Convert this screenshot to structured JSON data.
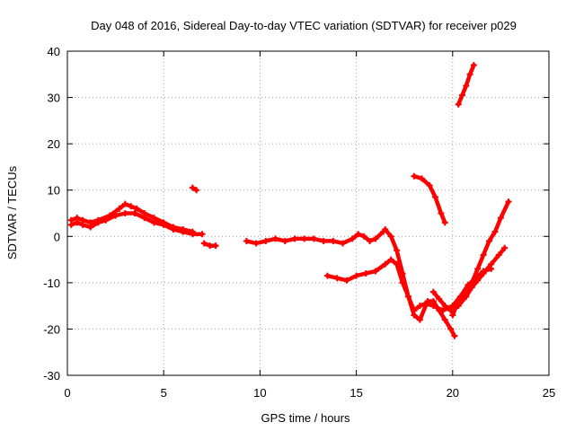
{
  "chart_data": {
    "type": "scatter",
    "title": "Day 048 of 2016, Sidereal Day-to-day VTEC variation (SDTVAR) for receiver p029",
    "xlabel": "GPS time / hours",
    "ylabel": "SDTVAR / TECUs",
    "xlim": [
      0,
      25
    ],
    "ylim": [
      -30,
      40
    ],
    "xticks": [
      0,
      5,
      10,
      15,
      20,
      25
    ],
    "yticks": [
      -30,
      -20,
      -10,
      0,
      10,
      20,
      30,
      40
    ],
    "grid": true,
    "marker": "+",
    "color": "#ff0000",
    "series": [
      {
        "points": [
          [
            0.2,
            2.5
          ],
          [
            0.5,
            3
          ],
          [
            0.8,
            2.5
          ],
          [
            1.2,
            2
          ],
          [
            1.6,
            3
          ],
          [
            2.0,
            3.5
          ],
          [
            2.5,
            4.5
          ],
          [
            3.0,
            5
          ],
          [
            3.5,
            5
          ],
          [
            4.0,
            4
          ],
          [
            4.5,
            3
          ],
          [
            5.0,
            2.5
          ],
          [
            5.5,
            1.5
          ],
          [
            6.0,
            1
          ],
          [
            6.5,
            0.5
          ],
          [
            7.0,
            0.5
          ]
        ]
      },
      {
        "points": [
          [
            0.2,
            3.5
          ],
          [
            0.5,
            4
          ],
          [
            0.8,
            3.5
          ],
          [
            1.2,
            3
          ],
          [
            1.6,
            3.5
          ],
          [
            2.2,
            4.5
          ],
          [
            2.7,
            6
          ],
          [
            3.0,
            7
          ],
          [
            3.3,
            6.5
          ],
          [
            3.6,
            6
          ],
          [
            4.0,
            5
          ],
          [
            4.5,
            4
          ],
          [
            5.0,
            3
          ],
          [
            5.5,
            2
          ],
          [
            6.0,
            1.5
          ],
          [
            6.5,
            1
          ]
        ]
      },
      {
        "points": [
          [
            7.1,
            -1.5
          ],
          [
            7.4,
            -2
          ],
          [
            7.7,
            -2
          ]
        ]
      },
      {
        "points": [
          [
            6.5,
            10.5
          ],
          [
            6.7,
            10
          ]
        ]
      },
      {
        "points": [
          [
            9.3,
            -1
          ],
          [
            9.8,
            -1.5
          ],
          [
            10.3,
            -1
          ],
          [
            10.8,
            -0.5
          ],
          [
            11.3,
            -1
          ],
          [
            11.8,
            -0.5
          ],
          [
            12.3,
            -0.5
          ],
          [
            12.8,
            -0.5
          ],
          [
            13.3,
            -1
          ],
          [
            13.8,
            -1
          ],
          [
            14.3,
            -1.5
          ],
          [
            14.8,
            -0.5
          ],
          [
            15.1,
            0.5
          ],
          [
            15.4,
            0
          ],
          [
            15.7,
            -1
          ],
          [
            16.0,
            -0.5
          ],
          [
            16.4,
            1
          ]
        ]
      },
      {
        "points": [
          [
            13.5,
            -8.5
          ],
          [
            14.0,
            -9
          ],
          [
            14.5,
            -9.5
          ],
          [
            15.0,
            -8.5
          ],
          [
            15.5,
            -8
          ],
          [
            16.0,
            -7.5
          ],
          [
            16.5,
            -6
          ],
          [
            16.8,
            -5
          ],
          [
            17.1,
            -6
          ],
          [
            17.4,
            -10
          ],
          [
            17.7,
            -13
          ],
          [
            18.0,
            -16
          ],
          [
            18.3,
            -15
          ],
          [
            18.6,
            -14.5
          ],
          [
            19.0,
            -15
          ],
          [
            19.5,
            -16
          ],
          [
            20.0,
            -15
          ],
          [
            20.4,
            -13
          ],
          [
            20.8,
            -10.5
          ],
          [
            21.2,
            -9
          ],
          [
            21.6,
            -7.5
          ],
          [
            22.0,
            -7
          ]
        ]
      },
      {
        "points": [
          [
            16.5,
            1.5
          ],
          [
            16.8,
            0
          ],
          [
            17.1,
            -3
          ],
          [
            17.4,
            -8
          ],
          [
            17.7,
            -13
          ],
          [
            18.0,
            -17
          ],
          [
            18.3,
            -18
          ],
          [
            18.7,
            -14
          ],
          [
            19.0,
            -14
          ],
          [
            19.3,
            -16
          ],
          [
            19.6,
            -18
          ],
          [
            19.9,
            -20
          ],
          [
            20.1,
            -21.5
          ]
        ]
      },
      {
        "points": [
          [
            18.0,
            13
          ],
          [
            18.4,
            12.5
          ],
          [
            18.8,
            11
          ],
          [
            19.1,
            8.5
          ],
          [
            19.4,
            5
          ],
          [
            19.6,
            3
          ]
        ]
      },
      {
        "points": [
          [
            19.0,
            -12
          ],
          [
            19.3,
            -13.5
          ],
          [
            19.6,
            -15
          ],
          [
            19.9,
            -16
          ],
          [
            20.3,
            -15
          ],
          [
            20.7,
            -13
          ],
          [
            21.0,
            -11
          ],
          [
            21.3,
            -9.5
          ],
          [
            21.6,
            -8
          ],
          [
            22.0,
            -6
          ],
          [
            22.4,
            -4
          ],
          [
            22.7,
            -2.5
          ]
        ]
      },
      {
        "points": [
          [
            20.0,
            -17
          ],
          [
            20.3,
            -14
          ],
          [
            20.7,
            -12
          ],
          [
            21.0,
            -10
          ],
          [
            21.3,
            -7
          ],
          [
            21.6,
            -4
          ],
          [
            21.9,
            -1
          ],
          [
            22.2,
            1
          ],
          [
            22.5,
            4
          ],
          [
            22.9,
            7.5
          ]
        ]
      },
      {
        "points": [
          [
            20.3,
            28.5
          ],
          [
            20.5,
            30.5
          ],
          [
            20.7,
            32.5
          ],
          [
            20.9,
            35
          ],
          [
            21.1,
            37
          ]
        ]
      }
    ]
  }
}
